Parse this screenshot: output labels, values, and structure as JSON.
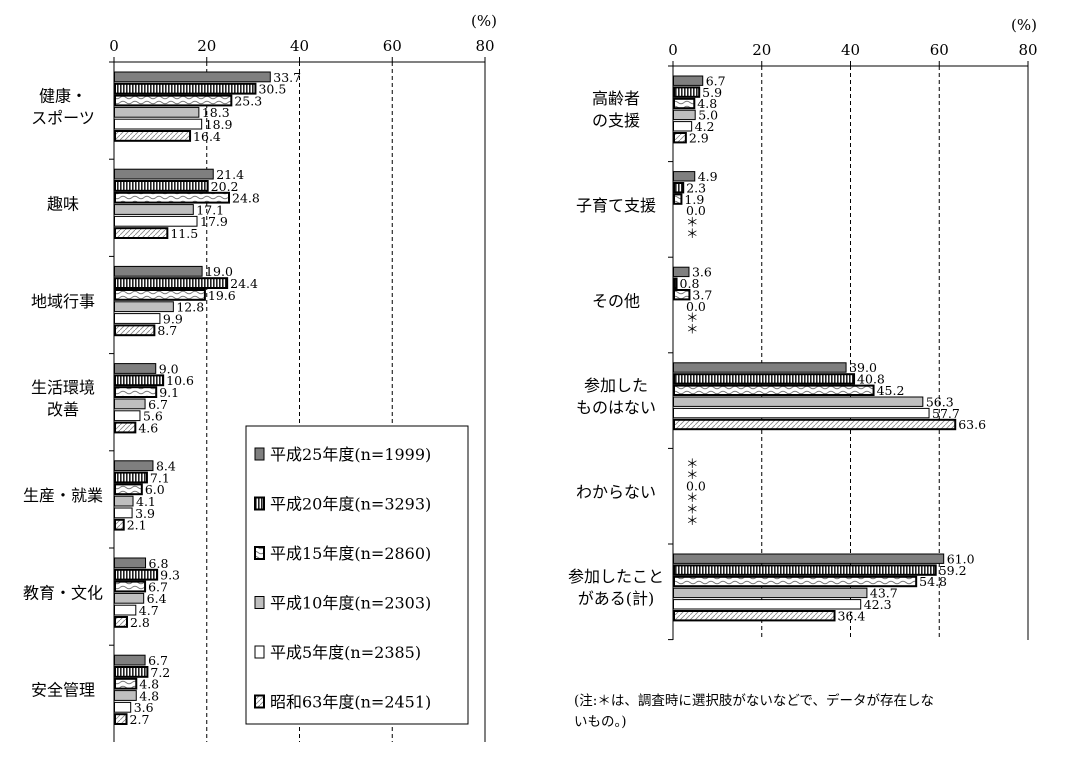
{
  "chart_data": [
    {
      "type": "bar",
      "orientation": "horizontal",
      "unit_label": "(%)",
      "xlim": [
        0,
        80
      ],
      "xticks": [
        "0",
        "20",
        "40",
        "60",
        "80"
      ],
      "grid": "dashed vertical lines at 20, 40, 60",
      "categories": [
        [
          "健康・",
          "スポーツ"
        ],
        [
          "趣味"
        ],
        [
          "地域行事"
        ],
        [
          "生活環境",
          "改善"
        ],
        [
          "生産・就業"
        ],
        [
          "教育・文化"
        ],
        [
          "安全管理"
        ]
      ],
      "series": [
        {
          "name": "平成25年度(n=1999)",
          "values": [
            33.7,
            21.4,
            19.0,
            9.0,
            8.4,
            6.8,
            6.7
          ]
        },
        {
          "name": "平成20年度(n=3293)",
          "values": [
            30.5,
            20.2,
            24.4,
            10.6,
            7.1,
            9.3,
            7.2
          ]
        },
        {
          "name": "平成15年度(n=2860)",
          "values": [
            25.3,
            24.8,
            19.6,
            9.1,
            6.0,
            6.7,
            4.8
          ]
        },
        {
          "name": "平成10年度(n=2303)",
          "values": [
            18.3,
            17.1,
            12.8,
            6.7,
            4.1,
            6.4,
            4.8
          ]
        },
        {
          "name": "平成5年度(n=2385)",
          "values": [
            18.9,
            17.9,
            9.9,
            5.6,
            3.9,
            4.7,
            3.6
          ]
        },
        {
          "name": "昭和63年度(n=2451)",
          "values": [
            16.4,
            11.5,
            8.7,
            4.6,
            2.1,
            2.8,
            2.7
          ]
        }
      ]
    },
    {
      "type": "bar",
      "orientation": "horizontal",
      "unit_label": "(%)",
      "xlim": [
        0,
        80
      ],
      "xticks": [
        "0",
        "20",
        "40",
        "60",
        "80"
      ],
      "grid": "dashed vertical lines at 20, 40, 60",
      "categories": [
        [
          "高齢者",
          "の支援"
        ],
        [
          "子育て支援"
        ],
        [
          "その他"
        ],
        [
          "参加した",
          "ものはない"
        ],
        [
          "わからない"
        ],
        [
          "参加したこと",
          "がある(計)"
        ]
      ],
      "missing_marker": "＊",
      "series": [
        {
          "name": "平成25年度(n=1999)",
          "values": [
            6.7,
            4.9,
            3.6,
            39.0,
            null,
            61.0
          ]
        },
        {
          "name": "平成20年度(n=3293)",
          "values": [
            5.9,
            2.3,
            0.8,
            40.8,
            null,
            59.2
          ]
        },
        {
          "name": "平成15年度(n=2860)",
          "values": [
            4.8,
            1.9,
            3.7,
            45.2,
            0.0,
            54.8
          ]
        },
        {
          "name": "平成10年度(n=2303)",
          "values": [
            5.0,
            0.0,
            0.0,
            56.3,
            null,
            43.7
          ]
        },
        {
          "name": "平成5年度(n=2385)",
          "values": [
            4.2,
            null,
            null,
            57.7,
            null,
            42.3
          ]
        },
        {
          "name": "昭和63年度(n=2451)",
          "values": [
            2.9,
            null,
            null,
            63.6,
            null,
            36.4
          ]
        }
      ]
    }
  ],
  "legend": {
    "placement": "bottom-right of left chart",
    "entries": [
      "平成25年度(n=1999)",
      "平成20年度(n=3293)",
      "平成15年度(n=2860)",
      "平成10年度(n=2303)",
      "平成5年度(n=2385)",
      "昭和63年度(n=2451)"
    ]
  },
  "note": [
    "(注:＊は、調査時に選択肢がないなどで、データが存在しな",
    "いもの。)"
  ],
  "series_colors": [
    "#7f7f7f",
    "#ffffff",
    "#ffffff",
    "#bfbfbf",
    "#ffffff",
    "#ffffff"
  ]
}
